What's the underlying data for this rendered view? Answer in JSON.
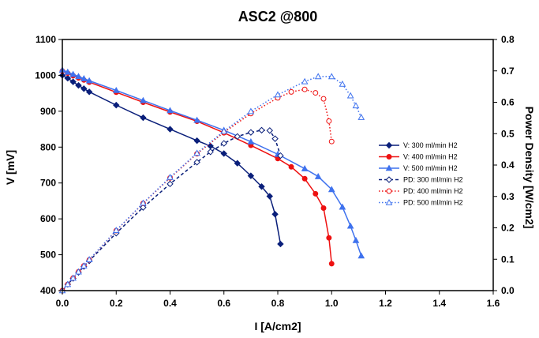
{
  "chart_data": {
    "type": "scatter",
    "title": "ASC2 @800",
    "xlabel": "I [A/cm2]",
    "ylabel": "V [mV]",
    "y2label": "Power Density [W/cm2]",
    "xlim": [
      0,
      1.6
    ],
    "ylim": [
      400,
      1100
    ],
    "y2lim": [
      0,
      0.8
    ],
    "x_ticks": [
      "0.0",
      "0.2",
      "0.4",
      "0.6",
      "0.8",
      "1.0",
      "1.2",
      "1.4",
      "1.6"
    ],
    "y_ticks": [
      "400",
      "500",
      "600",
      "700",
      "800",
      "900",
      "1000",
      "1100"
    ],
    "y2_ticks": [
      "0.0",
      "0.1",
      "0.2",
      "0.3",
      "0.4",
      "0.5",
      "0.6",
      "0.7",
      "0.8"
    ],
    "grid": false,
    "legend_position": "right",
    "series": [
      {
        "name": "V: 300 ml/min H2",
        "axis": "left",
        "color": "#0a1f7a",
        "marker": "diamond",
        "filled": true,
        "line": "solid",
        "x": [
          0.0,
          0.02,
          0.04,
          0.06,
          0.08,
          0.1,
          0.2,
          0.3,
          0.4,
          0.5,
          0.55,
          0.6,
          0.65,
          0.7,
          0.74,
          0.77,
          0.79,
          0.81
        ],
        "y": [
          1000,
          992,
          982,
          972,
          963,
          954,
          917,
          882,
          850,
          818,
          803,
          782,
          755,
          720,
          690,
          663,
          613,
          530
        ]
      },
      {
        "name": "V: 400 ml/min H2",
        "axis": "left",
        "color": "#ee1111",
        "marker": "circle",
        "filled": true,
        "line": "solid",
        "x": [
          0.0,
          0.02,
          0.04,
          0.06,
          0.08,
          0.1,
          0.2,
          0.3,
          0.4,
          0.5,
          0.6,
          0.7,
          0.8,
          0.85,
          0.9,
          0.94,
          0.97,
          0.99,
          1.0
        ],
        "y": [
          1012,
          1006,
          999,
          993,
          987,
          981,
          953,
          925,
          898,
          872,
          840,
          805,
          768,
          745,
          712,
          670,
          630,
          547,
          475
        ]
      },
      {
        "name": "V: 500 ml/min H2",
        "axis": "left",
        "color": "#3f72ee",
        "marker": "triangle",
        "filled": true,
        "line": "solid",
        "x": [
          0.0,
          0.02,
          0.04,
          0.06,
          0.08,
          0.1,
          0.2,
          0.3,
          0.4,
          0.5,
          0.6,
          0.7,
          0.8,
          0.9,
          0.95,
          1.0,
          1.04,
          1.07,
          1.09,
          1.11
        ],
        "y": [
          1015,
          1009,
          1003,
          997,
          991,
          985,
          958,
          930,
          902,
          875,
          847,
          815,
          780,
          740,
          718,
          682,
          633,
          580,
          540,
          497
        ]
      },
      {
        "name": "PD: 300 ml/min H2",
        "axis": "right",
        "color": "#0a1f7a",
        "marker": "diamond",
        "filled": false,
        "line": "dashed",
        "x": [
          0.0,
          0.02,
          0.04,
          0.06,
          0.08,
          0.1,
          0.2,
          0.3,
          0.4,
          0.5,
          0.55,
          0.6,
          0.65,
          0.7,
          0.74,
          0.77,
          0.79,
          0.81
        ],
        "y": [
          0.0,
          0.02,
          0.039,
          0.058,
          0.077,
          0.095,
          0.183,
          0.265,
          0.34,
          0.409,
          0.442,
          0.469,
          0.491,
          0.504,
          0.511,
          0.51,
          0.484,
          0.43
        ]
      },
      {
        "name": "PD: 400 ml/min H2",
        "axis": "right",
        "color": "#ee1111",
        "marker": "circle",
        "filled": false,
        "line": "dotted",
        "x": [
          0.0,
          0.02,
          0.04,
          0.06,
          0.08,
          0.1,
          0.2,
          0.3,
          0.4,
          0.5,
          0.6,
          0.7,
          0.8,
          0.85,
          0.9,
          0.94,
          0.97,
          0.99,
          1.0
        ],
        "y": [
          0.0,
          0.02,
          0.04,
          0.06,
          0.079,
          0.098,
          0.191,
          0.278,
          0.359,
          0.436,
          0.504,
          0.564,
          0.614,
          0.633,
          0.641,
          0.63,
          0.611,
          0.54,
          0.475
        ]
      },
      {
        "name": "PD: 500 ml/min H2",
        "axis": "right",
        "color": "#3f72ee",
        "marker": "triangle",
        "filled": false,
        "line": "dotted",
        "x": [
          0.0,
          0.02,
          0.04,
          0.06,
          0.08,
          0.1,
          0.2,
          0.3,
          0.4,
          0.5,
          0.6,
          0.7,
          0.8,
          0.9,
          0.95,
          1.0,
          1.04,
          1.07,
          1.09,
          1.11
        ],
        "y": [
          0.0,
          0.02,
          0.04,
          0.06,
          0.079,
          0.099,
          0.192,
          0.279,
          0.361,
          0.438,
          0.508,
          0.571,
          0.624,
          0.666,
          0.682,
          0.682,
          0.658,
          0.621,
          0.589,
          0.552
        ]
      }
    ]
  }
}
